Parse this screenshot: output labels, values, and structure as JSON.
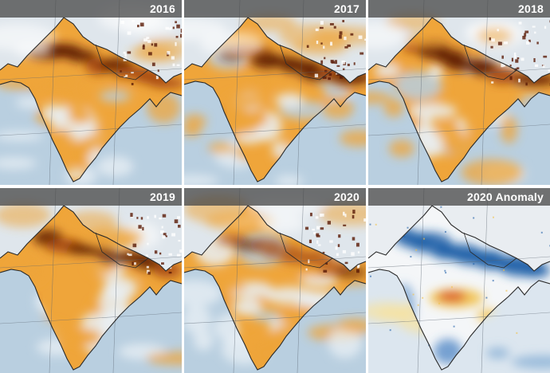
{
  "panels": [
    {
      "label": "2016",
      "kind": "aod"
    },
    {
      "label": "2017",
      "kind": "aod"
    },
    {
      "label": "2018",
      "kind": "aod"
    },
    {
      "label": "2019",
      "kind": "aod"
    },
    {
      "label": "2020",
      "kind": "aod"
    },
    {
      "label": "2020 Anomaly",
      "kind": "anomaly"
    }
  ],
  "colors": {
    "aod_ocean": "#b9cfe0",
    "aod_low": "#e9f0f6",
    "aod_mid": "#efa53a",
    "aod_high": "#a5470f",
    "aod_extreme": "#5a1a06",
    "anomaly_ocean": "#dce6ef",
    "anomaly_neg": "#1f5fa8",
    "anomaly_neutral": "#f4f6f8",
    "anomaly_pos": "#d8502a",
    "border": "#2a2a2a",
    "grid": "#5a6470",
    "label_bar": "#464646",
    "label_text": "#ffffff"
  }
}
